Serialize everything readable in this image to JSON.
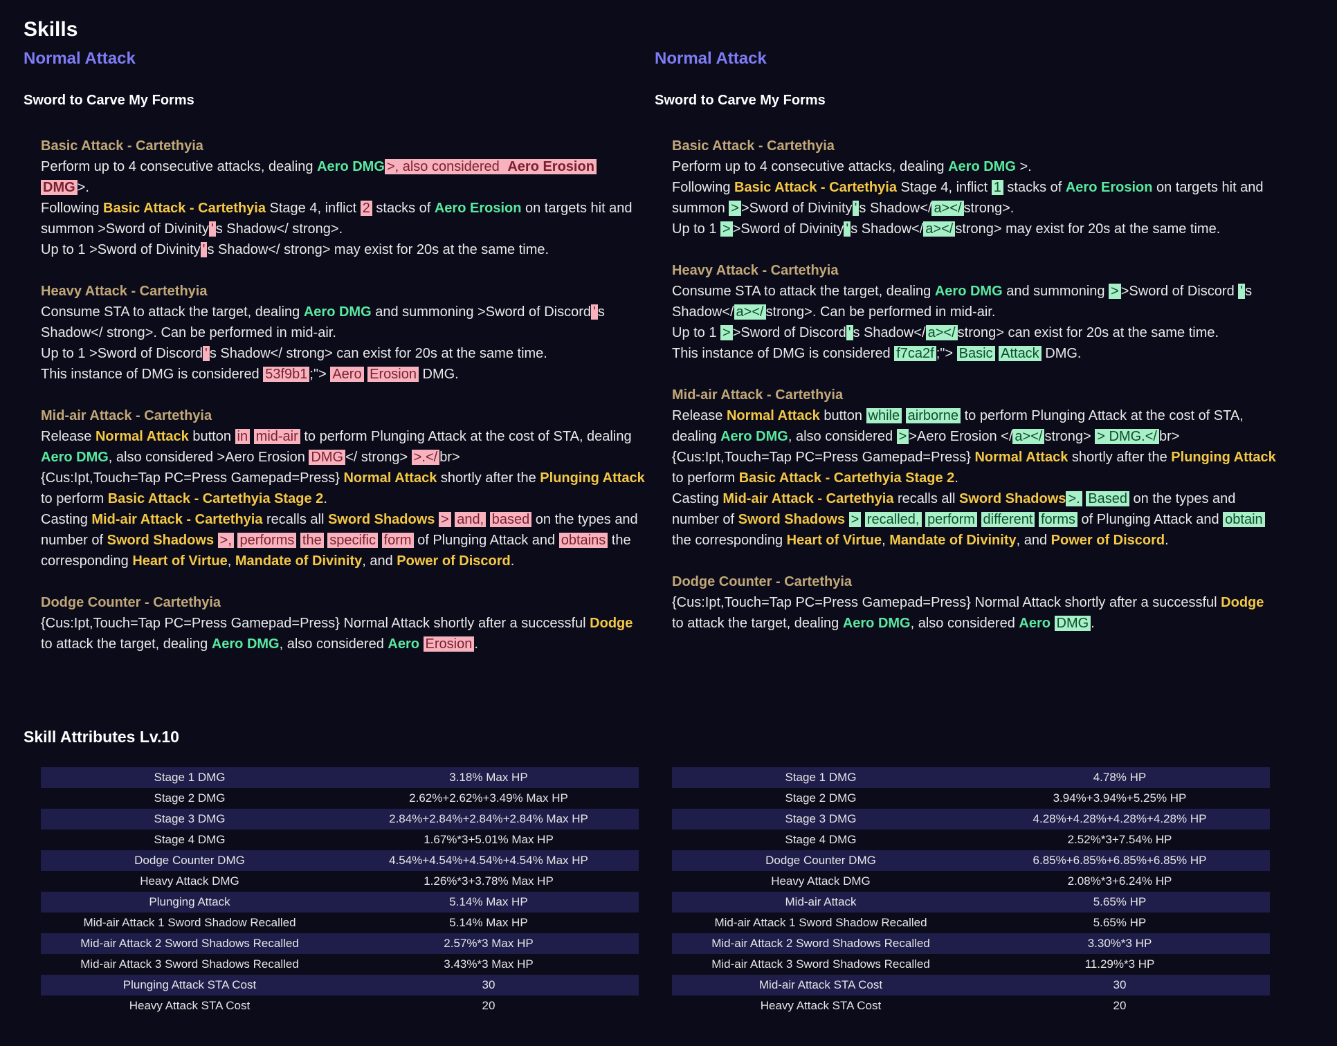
{
  "page_title": "Skills",
  "left": {
    "section": "Normal Attack",
    "skill": "Sword to Carve My Forms",
    "blocks": [
      {
        "name": "Basic Attack - Cartethyia",
        "lines": [
          [
            {
              "t": "Perform up to 4 consecutive attacks, dealing "
            },
            {
              "t": "Aero DMG",
              "c": "g"
            },
            {
              "t": ">, also considered ",
              "d": "del"
            },
            {
              "t": "Aero Erosion",
              "c": "g",
              "d": "del"
            },
            {
              "t": " "
            },
            {
              "t": "DMG",
              "c": "g",
              "d": "del"
            },
            {
              "t": ">."
            }
          ],
          [
            {
              "t": "Following "
            },
            {
              "t": "Basic Attack - Cartethyia",
              "c": "y"
            },
            {
              "t": " Stage 4, inflict "
            },
            {
              "t": "2",
              "d": "del"
            },
            {
              "t": " stacks of "
            },
            {
              "t": "Aero Erosion",
              "c": "g"
            },
            {
              "t": " on targets hit and summon  >Sword of Divinity"
            },
            {
              "t": "'",
              "d": "del"
            },
            {
              "t": "s Shadow</ strong>."
            }
          ],
          [
            {
              "t": "Up to 1  >Sword of Divinity"
            },
            {
              "t": "'",
              "d": "del"
            },
            {
              "t": "s Shadow</ strong> may exist for 20s at the same time."
            }
          ]
        ]
      },
      {
        "name": "Heavy Attack - Cartethyia",
        "lines": [
          [
            {
              "t": "Consume STA to attack the target, dealing "
            },
            {
              "t": "Aero DMG",
              "c": "g"
            },
            {
              "t": " and summoning  >Sword of Discord"
            },
            {
              "t": "'",
              "d": "del"
            },
            {
              "t": "s Shadow</ strong>. Can be performed in mid-air."
            }
          ],
          [
            {
              "t": "Up to 1  >Sword of Discord"
            },
            {
              "t": "'",
              "d": "del"
            },
            {
              "t": "s Shadow</ strong> can exist for 20s at the same time."
            }
          ],
          [
            {
              "t": "This instance of DMG is considered  "
            },
            {
              "t": "53f9b1",
              "d": "del"
            },
            {
              "t": ";\"> "
            },
            {
              "t": "Aero",
              "d": "del"
            },
            {
              "t": " "
            },
            {
              "t": "Erosion",
              "d": "del"
            },
            {
              "t": " DMG."
            }
          ]
        ]
      },
      {
        "name": "Mid-air Attack - Cartethyia",
        "lines": [
          [
            {
              "t": "Release "
            },
            {
              "t": "Normal Attack",
              "c": "y"
            },
            {
              "t": " button "
            },
            {
              "t": "in",
              "d": "del"
            },
            {
              "t": " "
            },
            {
              "t": "mid-air",
              "d": "del"
            },
            {
              "t": " to perform Plunging Attack at the cost of STA, dealing "
            },
            {
              "t": "Aero DMG",
              "c": "g"
            },
            {
              "t": ", also considered  >Aero Erosion "
            },
            {
              "t": "DMG",
              "d": "del"
            },
            {
              "t": "</ strong> "
            },
            {
              "t": ">.</",
              "d": "del"
            },
            {
              "t": "br>"
            }
          ],
          [
            {
              "t": "{Cus:Ipt,Touch=Tap PC=Press Gamepad=Press} "
            },
            {
              "t": "Normal Attack",
              "c": "y"
            },
            {
              "t": " shortly after the "
            },
            {
              "t": "Plunging Attack",
              "c": "y"
            },
            {
              "t": " to perform "
            },
            {
              "t": "Basic Attack - Cartethyia Stage 2",
              "c": "y"
            },
            {
              "t": "."
            }
          ],
          [
            {
              "t": "Casting "
            },
            {
              "t": "Mid-air Attack - Cartethyia",
              "c": "y"
            },
            {
              "t": " recalls all "
            },
            {
              "t": "Sword Shadows",
              "c": "y"
            },
            {
              "t": " "
            },
            {
              "t": ">",
              "d": "del"
            },
            {
              "t": " "
            },
            {
              "t": "and,",
              "d": "del"
            },
            {
              "t": " "
            },
            {
              "t": "based",
              "d": "del"
            },
            {
              "t": " on the types and number of  "
            },
            {
              "t": "Sword Shadows",
              "c": "y"
            },
            {
              "t": " "
            },
            {
              "t": ">,",
              "d": "del"
            },
            {
              "t": " "
            },
            {
              "t": "performs",
              "d": "del"
            },
            {
              "t": " "
            },
            {
              "t": "the",
              "d": "del"
            },
            {
              "t": " "
            },
            {
              "t": "specific",
              "d": "del"
            },
            {
              "t": " "
            },
            {
              "t": "form",
              "d": "del"
            },
            {
              "t": " of Plunging Attack and "
            },
            {
              "t": "obtains",
              "d": "del"
            },
            {
              "t": " the corresponding "
            },
            {
              "t": "Heart of Virtue",
              "c": "y"
            },
            {
              "t": ", "
            },
            {
              "t": "Mandate of Divinity",
              "c": "y"
            },
            {
              "t": ", and "
            },
            {
              "t": "Power of Discord",
              "c": "y"
            },
            {
              "t": "."
            }
          ]
        ]
      },
      {
        "name": "Dodge Counter - Cartethyia",
        "lines": [
          [
            {
              "t": "{Cus:Ipt,Touch=Tap PC=Press Gamepad=Press} Normal Attack shortly after a successful "
            },
            {
              "t": "Dodge",
              "c": "y"
            },
            {
              "t": " to attack the target, dealing "
            },
            {
              "t": "Aero DMG",
              "c": "g"
            },
            {
              "t": ", also considered "
            },
            {
              "t": "Aero",
              "c": "g"
            },
            {
              "t": " "
            },
            {
              "t": "Erosion",
              "d": "del"
            },
            {
              "t": "."
            }
          ]
        ]
      }
    ]
  },
  "right": {
    "section": "Normal Attack",
    "skill": "Sword to Carve My Forms",
    "blocks": [
      {
        "name": "Basic Attack - Cartethyia",
        "lines": [
          [
            {
              "t": "Perform up to 4 consecutive attacks, dealing "
            },
            {
              "t": "Aero DMG",
              "c": "g"
            },
            {
              "t": " >."
            }
          ],
          [
            {
              "t": "Following "
            },
            {
              "t": "Basic Attack - Cartethyia",
              "c": "y"
            },
            {
              "t": " Stage 4, inflict "
            },
            {
              "t": "1",
              "d": "ins"
            },
            {
              "t": " stacks of "
            },
            {
              "t": "Aero Erosion",
              "c": "g"
            },
            {
              "t": " on targets hit and summon "
            },
            {
              "t": ">",
              "d": "ins"
            },
            {
              "t": ">Sword of Divinity"
            },
            {
              "t": "'",
              "d": "ins"
            },
            {
              "t": "s Shadow</"
            },
            {
              "t": "a></",
              "d": "ins"
            },
            {
              "t": "strong>."
            }
          ],
          [
            {
              "t": "Up to 1 "
            },
            {
              "t": ">",
              "d": "ins"
            },
            {
              "t": ">Sword of Divinity"
            },
            {
              "t": "'",
              "d": "ins"
            },
            {
              "t": "s Shadow</"
            },
            {
              "t": "a></",
              "d": "ins"
            },
            {
              "t": "strong> may exist for 20s at the same time."
            }
          ]
        ]
      },
      {
        "name": "Heavy Attack - Cartethyia",
        "lines": [
          [
            {
              "t": "Consume STA to attack the target, dealing "
            },
            {
              "t": "Aero DMG",
              "c": "g"
            },
            {
              "t": " and summoning "
            },
            {
              "t": ">",
              "d": "ins"
            },
            {
              "t": ">Sword of Discord "
            },
            {
              "t": "'",
              "d": "ins"
            },
            {
              "t": "s Shadow</"
            },
            {
              "t": "a></",
              "d": "ins"
            },
            {
              "t": "strong>. Can be performed in mid-air."
            }
          ],
          [
            {
              "t": "Up to 1 "
            },
            {
              "t": ">",
              "d": "ins"
            },
            {
              "t": ">Sword of Discord"
            },
            {
              "t": "'",
              "d": "ins"
            },
            {
              "t": "s Shadow</"
            },
            {
              "t": "a></",
              "d": "ins"
            },
            {
              "t": "strong> can exist for 20s at the same time."
            }
          ],
          [
            {
              "t": "This instance of DMG is considered "
            },
            {
              "t": "f7ca2f",
              "d": "ins"
            },
            {
              "t": ";\"> "
            },
            {
              "t": "Basic",
              "d": "ins"
            },
            {
              "t": " "
            },
            {
              "t": "Attack",
              "d": "ins"
            },
            {
              "t": " DMG."
            }
          ]
        ]
      },
      {
        "name": "Mid-air Attack - Cartethyia",
        "lines": [
          [
            {
              "t": "Release "
            },
            {
              "t": "Normal Attack",
              "c": "y"
            },
            {
              "t": " button "
            },
            {
              "t": "while",
              "d": "ins"
            },
            {
              "t": " "
            },
            {
              "t": "airborne",
              "d": "ins"
            },
            {
              "t": " to perform Plunging Attack at the cost of STA, dealing "
            },
            {
              "t": "Aero DMG",
              "c": "g"
            },
            {
              "t": ", also considered "
            },
            {
              "t": ">",
              "d": "ins"
            },
            {
              "t": ">Aero Erosion </"
            },
            {
              "t": "a></",
              "d": "ins"
            },
            {
              "t": "strong> "
            },
            {
              "t": "> DMG.</",
              "d": "ins"
            },
            {
              "t": "br>"
            }
          ],
          [
            {
              "t": "{Cus:Ipt,Touch=Tap PC=Press Gamepad=Press} "
            },
            {
              "t": "Normal Attack",
              "c": "y"
            },
            {
              "t": " shortly after the "
            },
            {
              "t": "Plunging Attack",
              "c": "y"
            },
            {
              "t": " to perform "
            },
            {
              "t": "Basic Attack - Cartethyia Stage 2",
              "c": "y"
            },
            {
              "t": "."
            }
          ],
          [
            {
              "t": "Casting "
            },
            {
              "t": "Mid-air Attack - Cartethyia",
              "c": "y"
            },
            {
              "t": " recalls all "
            },
            {
              "t": "Sword Shadows",
              "c": "y"
            },
            {
              "t": ">.",
              "d": "ins"
            },
            {
              "t": " "
            },
            {
              "t": "Based",
              "d": "ins"
            },
            {
              "t": "  on the types and number of  "
            },
            {
              "t": "Sword Shadows",
              "c": "y"
            },
            {
              "t": " "
            },
            {
              "t": ">",
              "d": "ins"
            },
            {
              "t": " "
            },
            {
              "t": "recalled,",
              "d": "ins"
            },
            {
              "t": " "
            },
            {
              "t": "perform",
              "d": "ins"
            },
            {
              "t": " "
            },
            {
              "t": "different",
              "d": "ins"
            },
            {
              "t": " "
            },
            {
              "t": "forms",
              "d": "ins"
            },
            {
              "t": " of Plunging Attack and "
            },
            {
              "t": "obtain",
              "d": "ins"
            },
            {
              "t": " the corresponding "
            },
            {
              "t": "Heart of Virtue",
              "c": "y"
            },
            {
              "t": ", "
            },
            {
              "t": "Mandate of Divinity",
              "c": "y"
            },
            {
              "t": ", and "
            },
            {
              "t": "Power of Discord",
              "c": "y"
            },
            {
              "t": "."
            }
          ]
        ]
      },
      {
        "name": "Dodge Counter - Cartethyia",
        "lines": [
          [
            {
              "t": "{Cus:Ipt,Touch=Tap PC=Press Gamepad=Press} Normal Attack shortly after a successful "
            },
            {
              "t": "Dodge",
              "c": "y"
            },
            {
              "t": " to attack the target, dealing "
            },
            {
              "t": "Aero DMG",
              "c": "g"
            },
            {
              "t": ", also considered "
            },
            {
              "t": "Aero",
              "c": "g"
            },
            {
              "t": " "
            },
            {
              "t": "DMG",
              "d": "ins"
            },
            {
              "t": "."
            }
          ]
        ]
      }
    ]
  },
  "attributes_title": "Skill Attributes Lv.10",
  "attributes_left": [
    [
      "Stage 1 DMG",
      "3.18% Max HP"
    ],
    [
      "Stage 2 DMG",
      "2.62%+2.62%+3.49% Max HP"
    ],
    [
      "Stage 3 DMG",
      "2.84%+2.84%+2.84%+2.84% Max HP"
    ],
    [
      "Stage 4 DMG",
      "1.67%*3+5.01% Max HP"
    ],
    [
      "Dodge Counter DMG",
      "4.54%+4.54%+4.54%+4.54% Max HP"
    ],
    [
      "Heavy Attack DMG",
      "1.26%*3+3.78% Max HP"
    ],
    [
      "Plunging Attack",
      "5.14% Max HP"
    ],
    [
      "Mid-air Attack 1 Sword Shadow Recalled",
      "5.14% Max HP"
    ],
    [
      "Mid-air Attack 2 Sword Shadows Recalled",
      "2.57%*3 Max HP"
    ],
    [
      "Mid-air Attack 3 Sword Shadows Recalled",
      "3.43%*3 Max HP"
    ],
    [
      "Plunging Attack STA Cost",
      "30"
    ],
    [
      "Heavy Attack STA Cost",
      "20"
    ]
  ],
  "attributes_right": [
    [
      "Stage 1 DMG",
      "4.78% HP"
    ],
    [
      "Stage 2 DMG",
      "3.94%+3.94%+5.25% HP"
    ],
    [
      "Stage 3 DMG",
      "4.28%+4.28%+4.28%+4.28% HP"
    ],
    [
      "Stage 4 DMG",
      "2.52%*3+7.54% HP"
    ],
    [
      "Dodge Counter DMG",
      "6.85%+6.85%+6.85%+6.85% HP"
    ],
    [
      "Heavy Attack DMG",
      "2.08%*3+6.24% HP"
    ],
    [
      "Mid-air Attack",
      "5.65% HP"
    ],
    [
      "Mid-air Attack 1 Sword Shadow Recalled",
      "5.65% HP"
    ],
    [
      "Mid-air Attack 2 Sword Shadows Recalled",
      "3.30%*3 HP"
    ],
    [
      "Mid-air Attack 3 Sword Shadows Recalled",
      "11.29%*3 HP"
    ],
    [
      "Mid-air Attack STA Cost",
      "30"
    ],
    [
      "Heavy Attack STA Cost",
      "20"
    ]
  ],
  "colors": {
    "background": "#0b0b1a",
    "section_title": "#7f7cf5",
    "sub_name": "#c2a878",
    "keyword_green": "#5ae9a0",
    "keyword_gold": "#f5c945",
    "deleted_bg": "#f7b2bd",
    "inserted_bg": "#a8f0c8",
    "table_stripe": "#1f1d4a"
  }
}
